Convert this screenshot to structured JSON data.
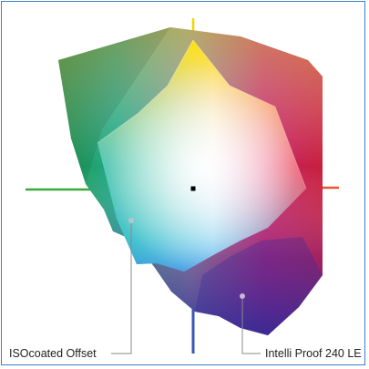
{
  "labels": {
    "inner_gamut": "ISOcoated Offset",
    "outer_gamut": "Intelli Proof 240 LE"
  },
  "colors": {
    "frame": "#3f7fc4",
    "axis_green": "#3aa83a",
    "axis_red": "#e8552e",
    "axis_yellow": "#f2d400",
    "axis_blue": "#3b55b8",
    "leader_line": "#8a8a8a",
    "center_dot": "#000000"
  }
}
